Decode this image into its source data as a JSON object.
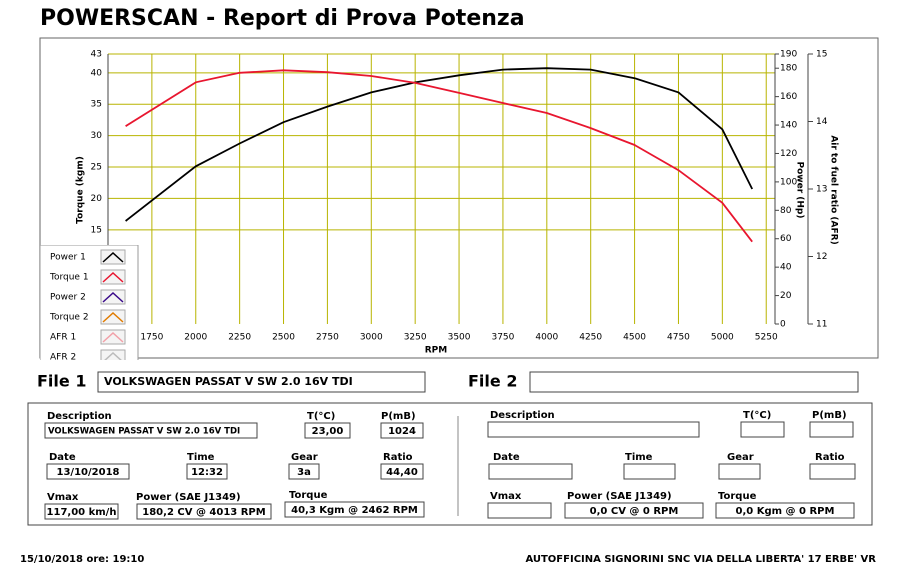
{
  "header": {
    "title": "POWERSCAN -  Report di Prova Potenza"
  },
  "chart_data": {
    "type": "line",
    "x_label": "RPM",
    "y_label": "Torque (kgm)",
    "y2_label": "Power (Hp)",
    "y3_label": "Air to fuel ratio (AFR)",
    "x": [
      1600,
      2000,
      2250,
      2500,
      2750,
      3000,
      3250,
      3500,
      3750,
      4000,
      4250,
      4500,
      4750,
      5000,
      5170
    ],
    "xlim": [
      1500,
      5300
    ],
    "xticks": [
      1750,
      2000,
      2250,
      2500,
      2750,
      3000,
      3250,
      3500,
      3750,
      4000,
      4250,
      4500,
      4750,
      5000,
      5250
    ],
    "ylim": [
      0,
      43
    ],
    "yticks": [
      15,
      20,
      25,
      30,
      35,
      40,
      43
    ],
    "y2lim": [
      0,
      190
    ],
    "y2ticks": [
      0,
      20,
      40,
      60,
      80,
      100,
      120,
      140,
      160,
      180,
      190
    ],
    "y3lim": [
      11,
      15
    ],
    "y3ticks": [
      11,
      12,
      13,
      14,
      15
    ],
    "grid": true,
    "grid_color": "#b8b400",
    "series": [
      {
        "name": "Power 1",
        "color": "#000000",
        "axis": "y2",
        "values": [
          72.5,
          111,
          127,
          142,
          153,
          163,
          170,
          175,
          179,
          180,
          179,
          173,
          163,
          137,
          95
        ]
      },
      {
        "name": "Torque 1",
        "color": "#e8162f",
        "values": [
          31.5,
          38.5,
          40,
          40.4,
          40.1,
          39.5,
          38.4,
          36.8,
          35.2,
          33.6,
          31.2,
          28.5,
          24.5,
          19.3,
          13.1
        ]
      },
      {
        "name": "Power 2",
        "color": "#3a0a8a",
        "axis": "y2",
        "values": [
          null,
          null,
          null,
          null,
          null,
          null,
          null,
          null,
          null,
          null,
          null,
          null,
          null,
          null,
          null
        ]
      },
      {
        "name": "Torque 2",
        "color": "#e07b00",
        "values": [
          null,
          null,
          null,
          null,
          null,
          null,
          null,
          null,
          null,
          null,
          null,
          null,
          null,
          null,
          null
        ]
      },
      {
        "name": "AFR 1",
        "color": "#f2a0a8",
        "axis": "y3",
        "values": [
          null,
          null,
          null,
          null,
          null,
          null,
          null,
          null,
          null,
          null,
          null,
          null,
          null,
          null,
          null
        ]
      },
      {
        "name": "AFR 2",
        "color": "#bbbbbb",
        "axis": "y3",
        "values": [
          null,
          null,
          null,
          null,
          null,
          null,
          null,
          null,
          null,
          null,
          null,
          null,
          null,
          null,
          null
        ]
      }
    ]
  },
  "files": [
    {
      "label": "File 1",
      "value": "VOLKSWAGEN PASSAT V SW 2.0 16V TDI"
    },
    {
      "label": "File 2"
    }
  ],
  "panels": [
    {
      "fields": [
        {
          "label": "Description",
          "value": "VOLKSWAGEN PASSAT V SW 2.0 16V TDI"
        },
        {
          "label": "T(°C)",
          "value": "23,00"
        },
        {
          "label": "P(mB)",
          "value": "1024"
        },
        {
          "label": "Date",
          "value": "13/10/2018"
        },
        {
          "label": "Time",
          "value": "12:32"
        },
        {
          "label": "Gear",
          "value": "3a"
        },
        {
          "label": "Ratio",
          "value": "44,40"
        },
        {
          "label": "Vmax",
          "value": "117,00 km/h"
        },
        {
          "label": "Power (SAE J1349)",
          "value": "180,2 CV  @ 4013  RPM"
        },
        {
          "label": "Torque",
          "value": "40,3 Kgm  @ 2462  RPM"
        }
      ]
    },
    {
      "fields": [
        {
          "label": "Description"
        },
        {
          "label": "T(°C)"
        },
        {
          "label": "P(mB)"
        },
        {
          "label": "Date"
        },
        {
          "label": "Time"
        },
        {
          "label": "Gear"
        },
        {
          "label": "Ratio"
        },
        {
          "label": "Vmax"
        },
        {
          "label": "Power (SAE J1349)",
          "value": "0,0 CV  @ 0  RPM"
        },
        {
          "label": "Torque",
          "value": "0,0 Kgm  @ 0  RPM"
        }
      ]
    }
  ],
  "footer": {
    "left": "15/10/2018  ore: 19:10",
    "right": "AUTOFFICINA SIGNORINI SNC VIA DELLA LIBERTA' 17 ERBE' VR"
  }
}
